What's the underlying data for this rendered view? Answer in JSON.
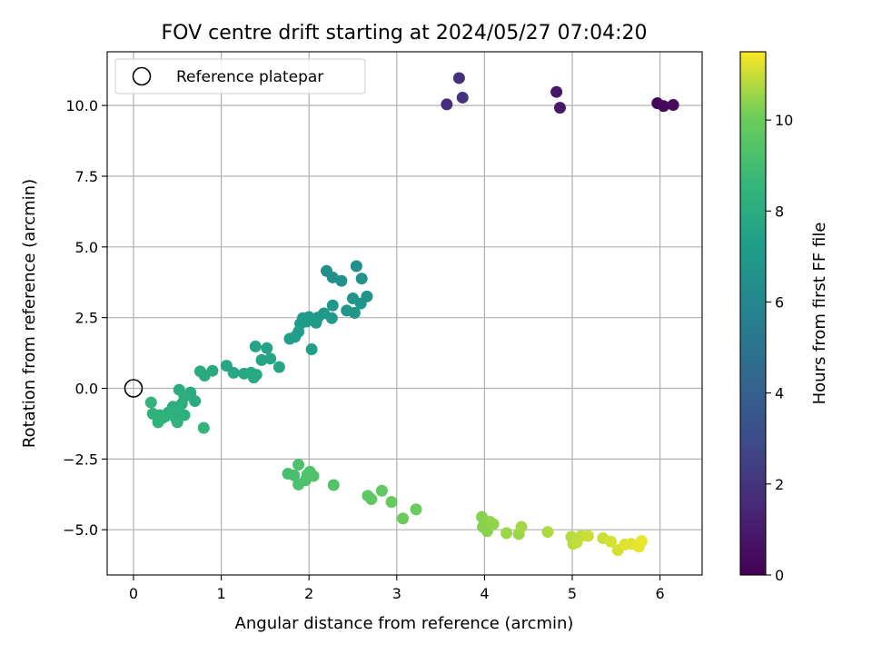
{
  "chart_data": {
    "type": "scatter",
    "title": "FOV centre drift starting at 2024/05/27 07:04:20",
    "xlabel": "Angular distance from reference (arcmin)",
    "ylabel": "Rotation from reference (arcmin)",
    "xlim": [
      -0.3,
      6.48
    ],
    "ylim": [
      -6.6,
      11.9
    ],
    "x_ticks": [
      0,
      1,
      2,
      3,
      4,
      5,
      6
    ],
    "x_tick_labels": [
      "0",
      "1",
      "2",
      "3",
      "4",
      "5",
      "6"
    ],
    "y_ticks": [
      -5.0,
      -2.5,
      0.0,
      2.5,
      5.0,
      7.5,
      10.0
    ],
    "y_tick_labels": [
      "−5.0",
      "−2.5",
      "0.0",
      "2.5",
      "5.0",
      "7.5",
      "10.0"
    ],
    "grid": true,
    "legend": {
      "position": "top-left",
      "entries": [
        "Reference platepar"
      ]
    },
    "reference_point": {
      "x": 0,
      "y": 0
    },
    "colorbar": {
      "label": "Hours from first FF file",
      "colormap": "viridis",
      "min": 0,
      "max": 11.5,
      "ticks": [
        0,
        2,
        4,
        6,
        8,
        10
      ],
      "tick_labels": [
        "0",
        "2",
        "4",
        "6",
        "8",
        "10"
      ]
    },
    "points": [
      {
        "x": 5.97,
        "y": 10.08,
        "h": 0.2
      },
      {
        "x": 6.04,
        "y": 9.98,
        "h": 0.3
      },
      {
        "x": 6.15,
        "y": 10.02,
        "h": 0.4
      },
      {
        "x": 4.82,
        "y": 10.48,
        "h": 0.8
      },
      {
        "x": 4.86,
        "y": 9.92,
        "h": 0.9
      },
      {
        "x": 3.57,
        "y": 10.04,
        "h": 1.6
      },
      {
        "x": 3.71,
        "y": 10.97,
        "h": 1.8
      },
      {
        "x": 3.75,
        "y": 10.28,
        "h": 1.9
      },
      {
        "x": 2.2,
        "y": 4.15,
        "h": 6.4
      },
      {
        "x": 2.27,
        "y": 3.92,
        "h": 6.4
      },
      {
        "x": 2.37,
        "y": 3.8,
        "h": 6.5
      },
      {
        "x": 2.54,
        "y": 4.32,
        "h": 6.5
      },
      {
        "x": 2.6,
        "y": 3.88,
        "h": 6.6
      },
      {
        "x": 2.66,
        "y": 3.25,
        "h": 6.6
      },
      {
        "x": 2.5,
        "y": 3.18,
        "h": 6.7
      },
      {
        "x": 2.59,
        "y": 3.0,
        "h": 6.7
      },
      {
        "x": 2.27,
        "y": 2.93,
        "h": 6.8
      },
      {
        "x": 2.43,
        "y": 2.75,
        "h": 6.8
      },
      {
        "x": 2.52,
        "y": 2.67,
        "h": 6.8
      },
      {
        "x": 2.17,
        "y": 2.65,
        "h": 6.9
      },
      {
        "x": 2.1,
        "y": 2.5,
        "h": 6.9
      },
      {
        "x": 2.26,
        "y": 2.48,
        "h": 7.0
      },
      {
        "x": 2.0,
        "y": 2.52,
        "h": 7.0
      },
      {
        "x": 1.93,
        "y": 2.48,
        "h": 7.0
      },
      {
        "x": 1.9,
        "y": 2.28,
        "h": 7.1
      },
      {
        "x": 2.08,
        "y": 2.32,
        "h": 7.1
      },
      {
        "x": 1.97,
        "y": 2.36,
        "h": 7.1
      },
      {
        "x": 1.88,
        "y": 2.0,
        "h": 7.2
      },
      {
        "x": 1.84,
        "y": 1.82,
        "h": 7.2
      },
      {
        "x": 1.78,
        "y": 1.75,
        "h": 7.3
      },
      {
        "x": 2.03,
        "y": 1.38,
        "h": 7.3
      },
      {
        "x": 1.39,
        "y": 1.48,
        "h": 7.5
      },
      {
        "x": 1.52,
        "y": 1.42,
        "h": 7.5
      },
      {
        "x": 1.46,
        "y": 1.0,
        "h": 7.6
      },
      {
        "x": 1.56,
        "y": 1.05,
        "h": 7.6
      },
      {
        "x": 1.66,
        "y": 0.75,
        "h": 7.6
      },
      {
        "x": 1.06,
        "y": 0.8,
        "h": 7.7
      },
      {
        "x": 1.14,
        "y": 0.55,
        "h": 7.7
      },
      {
        "x": 1.26,
        "y": 0.52,
        "h": 7.7
      },
      {
        "x": 1.34,
        "y": 0.55,
        "h": 7.8
      },
      {
        "x": 1.37,
        "y": 0.38,
        "h": 7.8
      },
      {
        "x": 1.4,
        "y": 0.48,
        "h": 7.8
      },
      {
        "x": 0.76,
        "y": 0.6,
        "h": 7.9
      },
      {
        "x": 0.81,
        "y": 0.45,
        "h": 7.9
      },
      {
        "x": 0.9,
        "y": 0.62,
        "h": 7.9
      },
      {
        "x": 0.52,
        "y": -0.05,
        "h": 8.0
      },
      {
        "x": 0.65,
        "y": -0.15,
        "h": 8.0
      },
      {
        "x": 0.7,
        "y": -0.45,
        "h": 8.0
      },
      {
        "x": 0.58,
        "y": -0.3,
        "h": 8.1
      },
      {
        "x": 0.55,
        "y": -0.55,
        "h": 8.1
      },
      {
        "x": 0.45,
        "y": -0.65,
        "h": 8.1
      },
      {
        "x": 0.5,
        "y": -0.8,
        "h": 8.2
      },
      {
        "x": 0.58,
        "y": -0.95,
        "h": 8.2
      },
      {
        "x": 0.4,
        "y": -0.85,
        "h": 8.2
      },
      {
        "x": 0.48,
        "y": -1.05,
        "h": 8.2
      },
      {
        "x": 0.5,
        "y": -1.2,
        "h": 8.3
      },
      {
        "x": 0.36,
        "y": -1.0,
        "h": 8.3
      },
      {
        "x": 0.3,
        "y": -0.95,
        "h": 8.3
      },
      {
        "x": 0.22,
        "y": -0.9,
        "h": 8.3
      },
      {
        "x": 0.28,
        "y": -1.2,
        "h": 8.4
      },
      {
        "x": 0.33,
        "y": -1.05,
        "h": 8.4
      },
      {
        "x": 0.2,
        "y": -0.5,
        "h": 8.4
      },
      {
        "x": 0.8,
        "y": -1.4,
        "h": 8.5
      },
      {
        "x": 1.76,
        "y": -3.02,
        "h": 9.1
      },
      {
        "x": 1.83,
        "y": -3.08,
        "h": 9.1
      },
      {
        "x": 1.88,
        "y": -2.7,
        "h": 9.2
      },
      {
        "x": 1.88,
        "y": -3.4,
        "h": 9.2
      },
      {
        "x": 1.96,
        "y": -3.25,
        "h": 9.2
      },
      {
        "x": 1.98,
        "y": -3.05,
        "h": 9.3
      },
      {
        "x": 2.01,
        "y": -2.95,
        "h": 9.3
      },
      {
        "x": 2.05,
        "y": -3.1,
        "h": 9.3
      },
      {
        "x": 2.28,
        "y": -3.42,
        "h": 9.4
      },
      {
        "x": 2.67,
        "y": -3.8,
        "h": 9.6
      },
      {
        "x": 2.71,
        "y": -3.92,
        "h": 9.6
      },
      {
        "x": 2.83,
        "y": -3.62,
        "h": 9.7
      },
      {
        "x": 2.94,
        "y": -4.02,
        "h": 9.8
      },
      {
        "x": 3.07,
        "y": -4.6,
        "h": 9.9
      },
      {
        "x": 3.22,
        "y": -4.28,
        "h": 9.9
      },
      {
        "x": 3.97,
        "y": -4.55,
        "h": 10.3
      },
      {
        "x": 3.98,
        "y": -4.9,
        "h": 10.3
      },
      {
        "x": 4.03,
        "y": -5.05,
        "h": 10.3
      },
      {
        "x": 4.06,
        "y": -4.72,
        "h": 10.4
      },
      {
        "x": 4.1,
        "y": -4.8,
        "h": 10.4
      },
      {
        "x": 4.25,
        "y": -5.12,
        "h": 10.5
      },
      {
        "x": 4.39,
        "y": -5.15,
        "h": 10.5
      },
      {
        "x": 4.42,
        "y": -4.9,
        "h": 10.6
      },
      {
        "x": 4.72,
        "y": -5.08,
        "h": 10.7
      },
      {
        "x": 4.99,
        "y": -5.25,
        "h": 10.8
      },
      {
        "x": 5.01,
        "y": -5.5,
        "h": 10.8
      },
      {
        "x": 5.05,
        "y": -5.45,
        "h": 10.9
      },
      {
        "x": 5.1,
        "y": -5.22,
        "h": 10.9
      },
      {
        "x": 5.18,
        "y": -5.22,
        "h": 11.0
      },
      {
        "x": 5.35,
        "y": -5.3,
        "h": 11.0
      },
      {
        "x": 5.44,
        "y": -5.42,
        "h": 11.1
      },
      {
        "x": 5.52,
        "y": -5.72,
        "h": 11.1
      },
      {
        "x": 5.6,
        "y": -5.52,
        "h": 11.2
      },
      {
        "x": 5.67,
        "y": -5.5,
        "h": 11.2
      },
      {
        "x": 5.76,
        "y": -5.6,
        "h": 11.3
      },
      {
        "x": 5.79,
        "y": -5.4,
        "h": 11.3
      }
    ]
  }
}
